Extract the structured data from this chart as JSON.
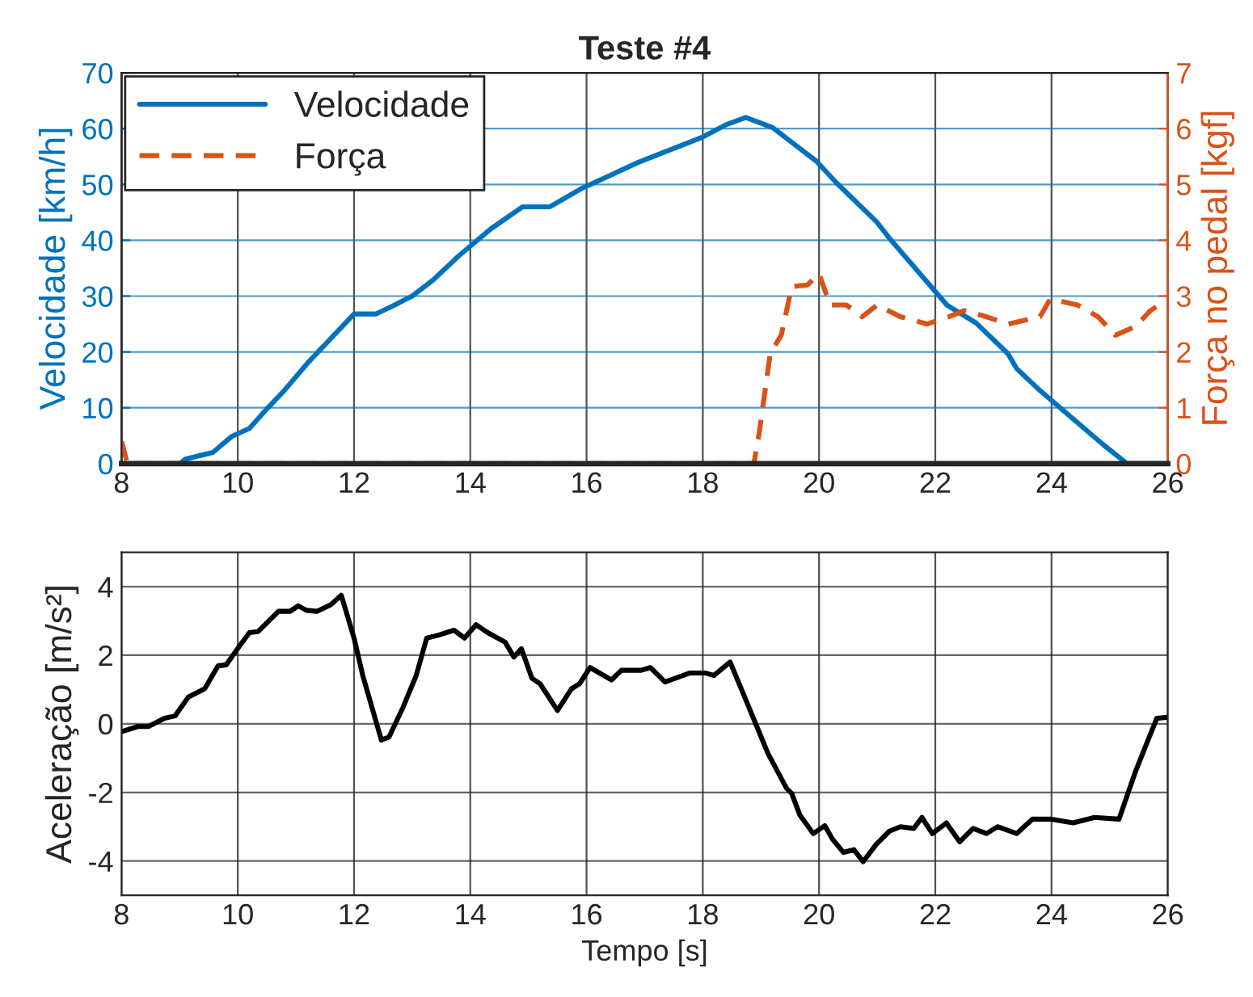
{
  "chart_data": [
    {
      "type": "line",
      "title": "Teste #4",
      "ylabel": "Velocidade [km/h]",
      "y2label": "Força no pedal [kgf]",
      "xlim": [
        8,
        26
      ],
      "xticks": [
        8,
        10,
        12,
        14,
        16,
        18,
        20,
        22,
        24,
        26
      ],
      "ylim": [
        0,
        70
      ],
      "yticks": [
        0,
        10,
        20,
        30,
        40,
        50,
        60,
        70
      ],
      "y2lim": [
        0,
        7
      ],
      "y2ticks": [
        0,
        1,
        2,
        3,
        4,
        5,
        6,
        7
      ],
      "grid": true,
      "legend": "top left",
      "series": [
        {
          "name": "Velocidade",
          "color": "#0072bd",
          "line_style": "solid",
          "x": [
            8,
            9.0,
            9.1,
            9.57,
            9.9,
            10.2,
            10.5,
            10.8,
            11.2,
            11.7,
            12.0,
            12.38,
            12.7,
            13.0,
            13.35,
            13.8,
            14.36,
            14.9,
            15.37,
            15.9,
            16.9,
            18.0,
            18.4,
            18.74,
            19.2,
            19.95,
            20.3,
            21.0,
            21.2,
            22.2,
            22.7,
            23.25,
            23.4,
            23.8,
            24.9,
            25.3,
            26
          ],
          "values": [
            0,
            0,
            0.8,
            2,
            4.9,
            6.3,
            9.8,
            13.1,
            18,
            23.5,
            26.8,
            26.8,
            28.4,
            30,
            32.8,
            37.2,
            42.1,
            46,
            46,
            49.2,
            54,
            58.5,
            60.7,
            62,
            60.2,
            54.2,
            50.3,
            43.2,
            40.5,
            28.4,
            25.2,
            19.7,
            17,
            13.1,
            3.3,
            0,
            0
          ]
        },
        {
          "name": "Força",
          "color": "#d95319",
          "line_style": "dashed",
          "axis": "y2",
          "x": [
            8,
            8.1,
            18.88,
            18.97,
            19.16,
            19.35,
            19.53,
            19.8,
            20.0,
            20.19,
            20.47,
            20.74,
            21.0,
            21.4,
            21.86,
            22.23,
            22.5,
            22.88,
            23.26,
            23.8,
            23.98,
            24.45,
            24.8,
            25.1,
            25.45,
            25.7,
            25.94
          ],
          "values": [
            0.4,
            0,
            0,
            0.55,
            1.97,
            2.3,
            3.17,
            3.2,
            3.4,
            2.84,
            2.84,
            2.63,
            2.84,
            2.63,
            2.5,
            2.63,
            2.74,
            2.63,
            2.5,
            2.63,
            2.95,
            2.84,
            2.63,
            2.3,
            2.46,
            2.74,
            2.9
          ]
        }
      ]
    },
    {
      "type": "line",
      "xlabel": "Tempo [s]",
      "ylabel": "Aceleração [m/s²]",
      "xlim": [
        8,
        26
      ],
      "xticks": [
        8,
        10,
        12,
        14,
        16,
        18,
        20,
        22,
        24,
        26
      ],
      "ylim": [
        -5,
        5
      ],
      "yticks": [
        -4,
        -2,
        0,
        2,
        4
      ],
      "grid": true,
      "series": [
        {
          "color": "#000000",
          "line_style": "solid",
          "x": [
            8,
            8.28,
            8.46,
            8.74,
            8.92,
            9.15,
            9.43,
            9.66,
            9.8,
            10.03,
            10.2,
            10.35,
            10.7,
            10.9,
            11.04,
            11.18,
            11.36,
            11.6,
            11.78,
            12.0,
            12.15,
            12.47,
            12.6,
            12.84,
            13.07,
            13.25,
            13.44,
            13.72,
            13.9,
            14.1,
            14.3,
            14.6,
            14.75,
            14.88,
            15.06,
            15.2,
            15.5,
            15.74,
            15.88,
            16.06,
            16.43,
            16.6,
            16.94,
            17.1,
            17.35,
            17.77,
            18.05,
            18.19,
            18.47,
            18.74,
            18.93,
            19.12,
            19.44,
            19.53,
            19.67,
            19.9,
            20.1,
            20.23,
            20.42,
            20.6,
            20.76,
            20.98,
            21.21,
            21.4,
            21.63,
            21.77,
            21.95,
            22.19,
            22.42,
            22.65,
            22.88,
            23.07,
            23.4,
            23.67,
            24.0,
            24.37,
            24.74,
            25.16,
            25.44,
            25.81,
            26
          ],
          "values": [
            -0.23,
            -0.08,
            -0.08,
            0.16,
            0.23,
            0.78,
            1.02,
            1.69,
            1.72,
            2.27,
            2.66,
            2.69,
            3.28,
            3.28,
            3.44,
            3.31,
            3.28,
            3.47,
            3.75,
            2.5,
            1.41,
            -0.47,
            -0.39,
            0.47,
            1.41,
            2.5,
            2.58,
            2.73,
            2.5,
            2.89,
            2.66,
            2.38,
            1.95,
            2.19,
            1.33,
            1.17,
            0.39,
            1.02,
            1.17,
            1.64,
            1.28,
            1.56,
            1.56,
            1.64,
            1.22,
            1.48,
            1.48,
            1.41,
            1.8,
            0.7,
            -0.08,
            -0.86,
            -1.88,
            -2.03,
            -2.66,
            -3.2,
            -2.97,
            -3.36,
            -3.75,
            -3.67,
            -4.02,
            -3.52,
            -3.13,
            -3.0,
            -3.05,
            -2.73,
            -3.2,
            -2.89,
            -3.44,
            -3.05,
            -3.2,
            -3.0,
            -3.2,
            -2.78,
            -2.78,
            -2.89,
            -2.73,
            -2.78,
            -1.41,
            0.16,
            0.19
          ]
        }
      ]
    }
  ]
}
